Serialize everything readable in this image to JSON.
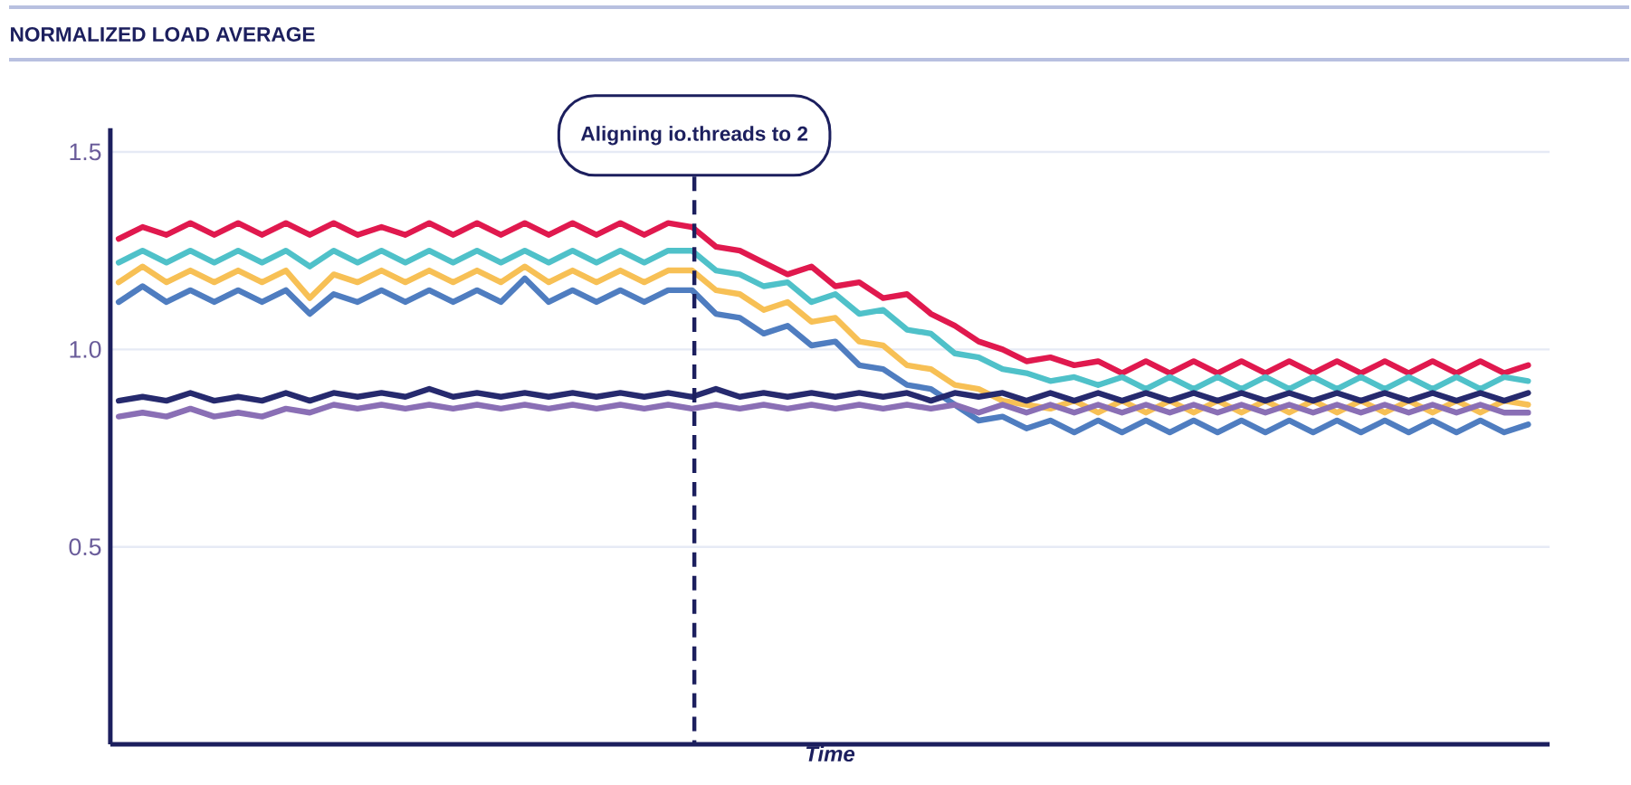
{
  "chart_data": {
    "type": "line",
    "title": "NORMALIZED LOAD AVERAGE",
    "xlabel": "Time",
    "categories": [
      null,
      null,
      null,
      null,
      null,
      null,
      null,
      null,
      null,
      null,
      null,
      null,
      null,
      null,
      null,
      null,
      null,
      null,
      null,
      null,
      null,
      null,
      null,
      null,
      null,
      null,
      null,
      null,
      null,
      null,
      null,
      null,
      null,
      null,
      null,
      null,
      null,
      null,
      null,
      null,
      null,
      null,
      null,
      null,
      null,
      null,
      null,
      null,
      null,
      null,
      null,
      null,
      null,
      null,
      null,
      null,
      null,
      null,
      null,
      null
    ],
    "series": [
      {
        "color": "#e0194e",
        "values": [
          1.28,
          1.31,
          1.29,
          1.32,
          1.29,
          1.32,
          1.29,
          1.32,
          1.29,
          1.32,
          1.29,
          1.31,
          1.29,
          1.32,
          1.29,
          1.32,
          1.29,
          1.32,
          1.29,
          1.32,
          1.29,
          1.32,
          1.29,
          1.32,
          1.31,
          1.26,
          1.25,
          1.22,
          1.19,
          1.21,
          1.16,
          1.17,
          1.13,
          1.14,
          1.09,
          1.06,
          1.02,
          1.0,
          0.97,
          0.98,
          0.96,
          0.97,
          0.94,
          0.97,
          0.94,
          0.97,
          0.94,
          0.97,
          0.94,
          0.97,
          0.94,
          0.97,
          0.94,
          0.97,
          0.94,
          0.97,
          0.94,
          0.97,
          0.94,
          0.96
        ]
      },
      {
        "color": "#4fc1c9",
        "values": [
          1.22,
          1.25,
          1.22,
          1.25,
          1.22,
          1.25,
          1.22,
          1.25,
          1.21,
          1.25,
          1.22,
          1.25,
          1.22,
          1.25,
          1.22,
          1.25,
          1.22,
          1.25,
          1.22,
          1.25,
          1.22,
          1.25,
          1.22,
          1.25,
          1.25,
          1.2,
          1.19,
          1.16,
          1.17,
          1.12,
          1.14,
          1.09,
          1.1,
          1.05,
          1.04,
          0.99,
          0.98,
          0.95,
          0.94,
          0.92,
          0.93,
          0.91,
          0.93,
          0.9,
          0.93,
          0.9,
          0.93,
          0.9,
          0.93,
          0.9,
          0.93,
          0.9,
          0.93,
          0.9,
          0.93,
          0.9,
          0.93,
          0.9,
          0.93,
          0.92
        ]
      },
      {
        "color": "#f7c055",
        "values": [
          1.17,
          1.21,
          1.17,
          1.2,
          1.17,
          1.2,
          1.17,
          1.2,
          1.13,
          1.19,
          1.17,
          1.2,
          1.17,
          1.2,
          1.17,
          1.2,
          1.17,
          1.21,
          1.17,
          1.2,
          1.17,
          1.2,
          1.17,
          1.2,
          1.2,
          1.15,
          1.14,
          1.1,
          1.12,
          1.07,
          1.08,
          1.02,
          1.01,
          0.96,
          0.95,
          0.91,
          0.9,
          0.87,
          0.86,
          0.85,
          0.87,
          0.84,
          0.87,
          0.84,
          0.87,
          0.84,
          0.87,
          0.84,
          0.87,
          0.84,
          0.87,
          0.84,
          0.87,
          0.84,
          0.87,
          0.84,
          0.87,
          0.84,
          0.87,
          0.86
        ]
      },
      {
        "color": "#4f7dc0",
        "values": [
          1.12,
          1.16,
          1.12,
          1.15,
          1.12,
          1.15,
          1.12,
          1.15,
          1.09,
          1.14,
          1.12,
          1.15,
          1.12,
          1.15,
          1.12,
          1.15,
          1.12,
          1.18,
          1.12,
          1.15,
          1.12,
          1.15,
          1.12,
          1.15,
          1.15,
          1.09,
          1.08,
          1.04,
          1.06,
          1.01,
          1.02,
          0.96,
          0.95,
          0.91,
          0.9,
          0.86,
          0.82,
          0.83,
          0.8,
          0.82,
          0.79,
          0.82,
          0.79,
          0.82,
          0.79,
          0.82,
          0.79,
          0.82,
          0.79,
          0.82,
          0.79,
          0.82,
          0.79,
          0.82,
          0.79,
          0.82,
          0.79,
          0.82,
          0.79,
          0.81
        ]
      },
      {
        "color": "#262a6e",
        "values": [
          0.87,
          0.88,
          0.87,
          0.89,
          0.87,
          0.88,
          0.87,
          0.89,
          0.87,
          0.89,
          0.88,
          0.89,
          0.88,
          0.9,
          0.88,
          0.89,
          0.88,
          0.89,
          0.88,
          0.89,
          0.88,
          0.89,
          0.88,
          0.89,
          0.88,
          0.9,
          0.88,
          0.89,
          0.88,
          0.89,
          0.88,
          0.89,
          0.88,
          0.89,
          0.87,
          0.89,
          0.88,
          0.89,
          0.87,
          0.89,
          0.87,
          0.89,
          0.87,
          0.89,
          0.87,
          0.89,
          0.87,
          0.89,
          0.87,
          0.89,
          0.87,
          0.89,
          0.87,
          0.89,
          0.87,
          0.89,
          0.87,
          0.89,
          0.87,
          0.89
        ]
      },
      {
        "color": "#8a6fb5",
        "values": [
          0.83,
          0.84,
          0.83,
          0.85,
          0.83,
          0.84,
          0.83,
          0.85,
          0.84,
          0.86,
          0.85,
          0.86,
          0.85,
          0.86,
          0.85,
          0.86,
          0.85,
          0.86,
          0.85,
          0.86,
          0.85,
          0.86,
          0.85,
          0.86,
          0.85,
          0.86,
          0.85,
          0.86,
          0.85,
          0.86,
          0.85,
          0.86,
          0.85,
          0.86,
          0.85,
          0.86,
          0.84,
          0.86,
          0.84,
          0.86,
          0.84,
          0.86,
          0.84,
          0.86,
          0.84,
          0.86,
          0.84,
          0.86,
          0.84,
          0.86,
          0.84,
          0.86,
          0.84,
          0.86,
          0.84,
          0.86,
          0.84,
          0.86,
          0.84,
          0.84
        ]
      }
    ],
    "ylim": [
      0,
      1.56
    ],
    "yticks": [
      0.5,
      {
        "value": 1.0,
        "label": "1.0"
      },
      1.5
    ],
    "grid": "y",
    "tick_labels": "y",
    "annotations": [
      "Aligning io.threads to 2"
    ]
  }
}
